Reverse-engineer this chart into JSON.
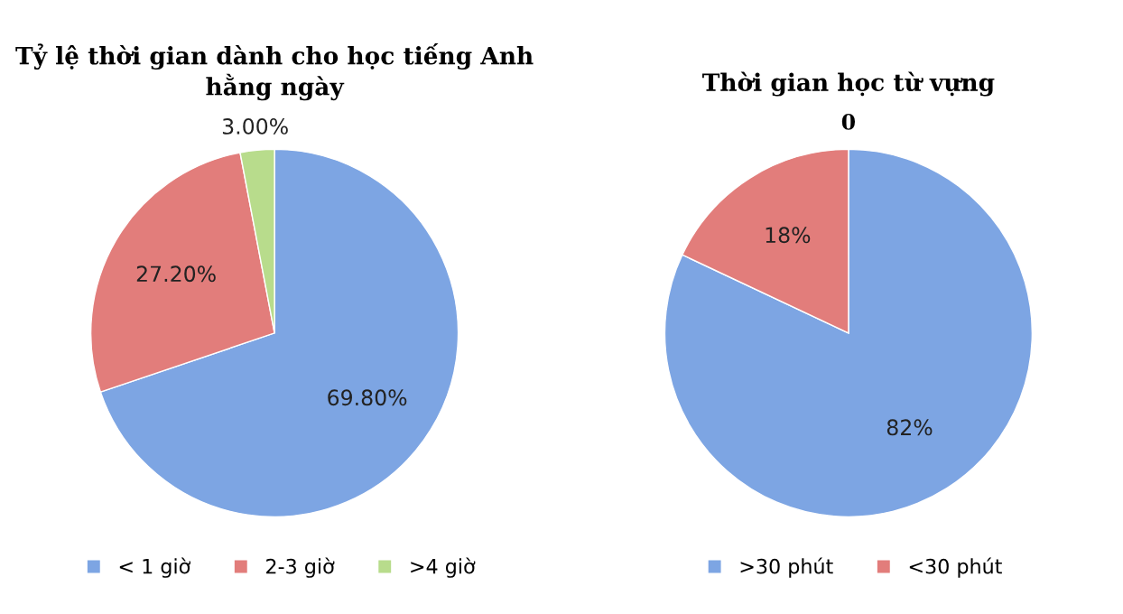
{
  "chart_data": [
    {
      "type": "pie",
      "title": "Tỷ lệ thời gian dành cho học tiếng Anh hằng ngày",
      "categories": [
        "< 1 giờ",
        "2-3 giờ",
        ">4 giờ"
      ],
      "values": [
        69.8,
        27.2,
        3.0
      ],
      "colors": [
        "#7da5e3",
        "#e27d7b",
        "#b8dc8c"
      ],
      "value_labels": [
        "69.80%",
        "27.20%",
        "3.00%"
      ],
      "legend": "bottom"
    },
    {
      "type": "pie",
      "title": "Thời gian học từ vựng",
      "categories": [
        ">30 phút",
        "<30 phút"
      ],
      "values": [
        82,
        18
      ],
      "colors": [
        "#7da5e3",
        "#e27d7b"
      ],
      "value_labels": [
        "82%",
        "18%"
      ],
      "annotations": [
        "0"
      ],
      "legend": "bottom"
    }
  ]
}
